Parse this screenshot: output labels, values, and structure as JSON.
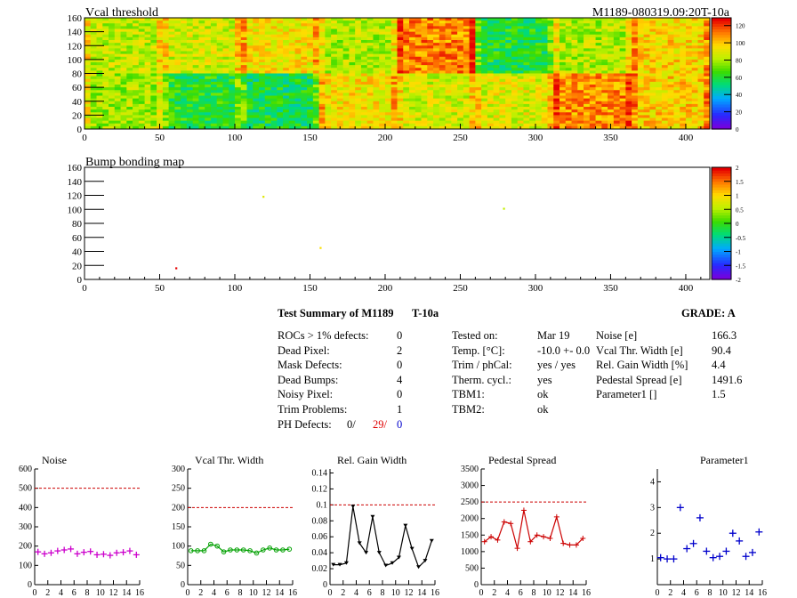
{
  "header": {
    "run_id": "M1189-080319.09:20T-10a"
  },
  "map1": {
    "title": "Vcal threshold",
    "x_ticks": [
      "0",
      "50",
      "100",
      "150",
      "200",
      "250",
      "300",
      "350",
      "400"
    ],
    "y_ticks": [
      "0",
      "20",
      "40",
      "60",
      "80",
      "100",
      "120",
      "140",
      "160"
    ],
    "palette_ticks": [
      "0",
      "20",
      "40",
      "60",
      "80",
      "100",
      "120"
    ]
  },
  "map2": {
    "title": "Bump bonding map",
    "x_ticks": [
      "0",
      "50",
      "100",
      "150",
      "200",
      "250",
      "300",
      "350",
      "400"
    ],
    "y_ticks": [
      "0",
      "20",
      "40",
      "60",
      "80",
      "100",
      "120",
      "140",
      "160"
    ],
    "palette_ticks": [
      "-2",
      "-1.5",
      "-1",
      "-0.5",
      "0",
      "0.5",
      "1",
      "1.5",
      "2"
    ]
  },
  "summary": {
    "title": "Test Summary of M1189",
    "temp_tag": "T-10a",
    "grade_label": "GRADE:  A",
    "left": [
      {
        "label": "ROCs > 1% defects:",
        "value": "0"
      },
      {
        "label": "Dead Pixel:",
        "value": "2"
      },
      {
        "label": "Mask Defects:",
        "value": "0"
      },
      {
        "label": "Dead Bumps:",
        "value": "4"
      },
      {
        "label": "Noisy Pixel:",
        "value": "0"
      },
      {
        "label": "Trim Problems:",
        "value": "1"
      }
    ],
    "ph_label": "PH Defects:",
    "ph_values": [
      "0/",
      "29/",
      "0"
    ],
    "middle": [
      {
        "label": "Tested on:",
        "value": "Mar 19"
      },
      {
        "label": "Temp. [°C]:",
        "value": "-10.0 +- 0.0"
      },
      {
        "label": "Trim / phCal:",
        "value": "yes / yes"
      },
      {
        "label": "Therm. cycl.:",
        "value": "yes"
      },
      {
        "label": "TBM1:",
        "value": "ok"
      },
      {
        "label": "TBM2:",
        "value": "ok"
      }
    ],
    "right": [
      {
        "label": "Noise [e]",
        "value": "166.3"
      },
      {
        "label": "Vcal Thr. Width [e]",
        "value": "90.4"
      },
      {
        "label": "Rel. Gain Width [%]",
        "value": "4.4"
      },
      {
        "label": "Pedestal Spread [e]",
        "value": "1491.6"
      },
      {
        "label": "Parameter1 []",
        "value": "1.5"
      }
    ]
  },
  "colors": {
    "noise": "#cc00cc",
    "vcal": "#00a000",
    "gain": "#000000",
    "pedestal": "#cc0000",
    "param": "#0000cc",
    "limit": "#cc0000"
  },
  "chart_data": [
    {
      "type": "heatmap",
      "title": "Vcal threshold",
      "xlim": [
        0,
        416
      ],
      "ylim": [
        0,
        160
      ],
      "zlim": [
        0,
        130
      ],
      "roc_layout": "8 columns x 2 rows of 52x80 pixel blocks",
      "roc_means_top_row": [
        85,
        88,
        95,
        82,
        112,
        60,
        82,
        98
      ],
      "roc_means_bottom_row": [
        80,
        62,
        58,
        95,
        88,
        90,
        110,
        100
      ]
    },
    {
      "type": "heatmap",
      "title": "Bump bonding map",
      "xlim": [
        0,
        416
      ],
      "ylim": [
        0,
        160
      ],
      "zlim": [
        -2,
        2
      ],
      "points": [
        {
          "x": 119,
          "y": 118,
          "z": 0.8
        },
        {
          "x": 279,
          "y": 101,
          "z": 0.6
        },
        {
          "x": 157,
          "y": 45,
          "z": 1.0
        },
        {
          "x": 61,
          "y": 16,
          "z": 2.0
        }
      ]
    },
    {
      "type": "scatter",
      "title": "Noise",
      "x": [
        0,
        1,
        2,
        3,
        4,
        5,
        6,
        7,
        8,
        9,
        10,
        11,
        12,
        13,
        14,
        15
      ],
      "y": [
        170,
        160,
        165,
        175,
        180,
        185,
        160,
        168,
        172,
        155,
        158,
        152,
        165,
        168,
        175,
        155
      ],
      "limit": 500,
      "ylim": [
        0,
        600
      ],
      "yticks": [
        "0",
        "100",
        "200",
        "300",
        "400",
        "500",
        "600"
      ],
      "xticks": [
        "0",
        "2",
        "4",
        "6",
        "8",
        "10",
        "12",
        "14",
        "16"
      ]
    },
    {
      "type": "line",
      "title": "Vcal Thr. Width",
      "x": [
        0,
        1,
        2,
        3,
        4,
        5,
        6,
        7,
        8,
        9,
        10,
        11,
        12,
        13,
        14,
        15
      ],
      "y": [
        88,
        88,
        88,
        105,
        100,
        85,
        90,
        90,
        90,
        88,
        82,
        90,
        95,
        90,
        90,
        92
      ],
      "limit": 200,
      "ylim": [
        0,
        300
      ],
      "yticks": [
        "0",
        "50",
        "100",
        "150",
        "200",
        "250",
        "300"
      ],
      "xticks": [
        "0",
        "2",
        "4",
        "6",
        "8",
        "10",
        "12",
        "14",
        "16"
      ]
    },
    {
      "type": "line",
      "title": "Rel. Gain Width",
      "x": [
        0,
        1,
        2,
        3,
        4,
        5,
        6,
        7,
        8,
        9,
        10,
        11,
        12,
        13,
        14,
        15
      ],
      "y": [
        0.025,
        0.025,
        0.027,
        0.098,
        0.052,
        0.04,
        0.085,
        0.04,
        0.024,
        0.027,
        0.034,
        0.074,
        0.045,
        0.022,
        0.03,
        0.055
      ],
      "limit": 0.1,
      "ylim": [
        0,
        0.145
      ],
      "yticks": [
        "0",
        "0.02",
        "0.04",
        "0.06",
        "0.08",
        "0.1",
        "0.12",
        "0.14"
      ],
      "xticks": [
        "0",
        "2",
        "4",
        "6",
        "8",
        "10",
        "12",
        "14",
        "16"
      ]
    },
    {
      "type": "line",
      "title": "Pedestal Spread",
      "x": [
        0,
        1,
        2,
        3,
        4,
        5,
        6,
        7,
        8,
        9,
        10,
        11,
        12,
        13,
        14,
        15
      ],
      "y": [
        1300,
        1450,
        1350,
        1900,
        1850,
        1100,
        2250,
        1300,
        1500,
        1450,
        1400,
        2050,
        1250,
        1200,
        1200,
        1400
      ],
      "limit": 2500,
      "ylim": [
        0,
        3500
      ],
      "yticks": [
        "0",
        "500",
        "1000",
        "1500",
        "2000",
        "2500",
        "3000",
        "3500"
      ],
      "xticks": [
        "0",
        "2",
        "4",
        "6",
        "8",
        "10",
        "12",
        "14",
        "16"
      ]
    },
    {
      "type": "scatter",
      "title": "Parameter1",
      "x": [
        0,
        1,
        2,
        3,
        4,
        5,
        6,
        7,
        8,
        9,
        10,
        11,
        12,
        13,
        14,
        15
      ],
      "y": [
        1.05,
        1.0,
        1.0,
        3.0,
        1.4,
        1.6,
        2.6,
        1.3,
        1.05,
        1.1,
        1.3,
        2.0,
        1.7,
        1.1,
        1.25,
        2.05
      ],
      "ylim": [
        0,
        4.5
      ],
      "yticks": [
        "1",
        "2",
        "3",
        "4"
      ],
      "xticks": [
        "0",
        "2",
        "4",
        "6",
        "8",
        "10",
        "12",
        "14",
        "16"
      ]
    }
  ]
}
